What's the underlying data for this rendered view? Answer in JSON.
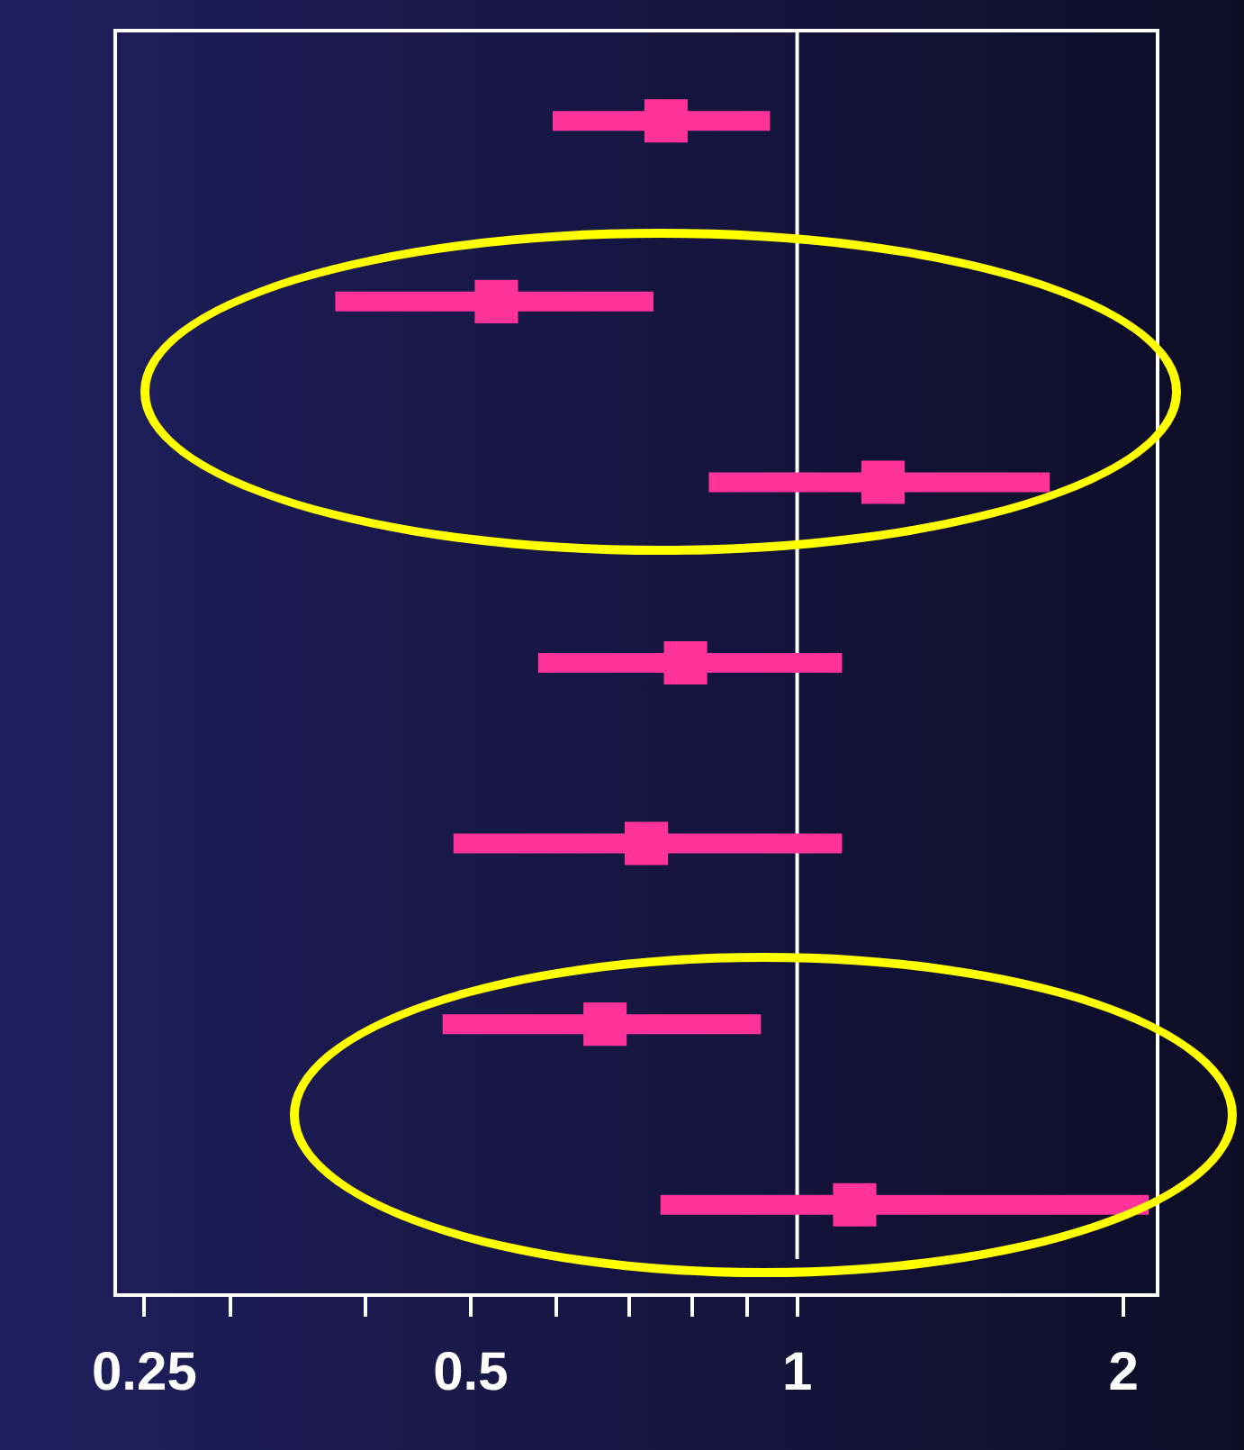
{
  "chart_data": {
    "type": "scatter",
    "categories": [
      null,
      null,
      null,
      null,
      null,
      null,
      null
    ],
    "series": [
      {
        "color": "#ff3399",
        "values": [
          0.757,
          0.528,
          1.2,
          0.789,
          0.726,
          0.665,
          1.13
        ],
        "errors": [
          [
            0.595,
            0.944
          ],
          [
            0.375,
            0.737
          ],
          [
            0.829,
            1.71
          ],
          [
            0.577,
            1.1
          ],
          [
            0.482,
            1.1
          ],
          [
            0.471,
            0.926
          ],
          [
            0.748,
            2.11
          ]
        ]
      }
    ],
    "orientation": "horizontal",
    "log": "x",
    "marker": "square",
    "xlim": [
      0.235,
      2.15
    ],
    "xticks": [
      0.25,
      {
        "value": 0.3,
        "label": null
      },
      {
        "value": 0.4,
        "label": null
      },
      0.5,
      {
        "value": 0.6,
        "label": null
      },
      {
        "value": 0.7,
        "label": null
      },
      {
        "value": 0.8,
        "label": null
      },
      {
        "value": 0.9,
        "label": null
      },
      1,
      2
    ],
    "ref_lines": [
      {
        "axis": "x",
        "value": 1,
        "color": "#ffffff"
      }
    ],
    "grid": false,
    "legend": false
  }
}
